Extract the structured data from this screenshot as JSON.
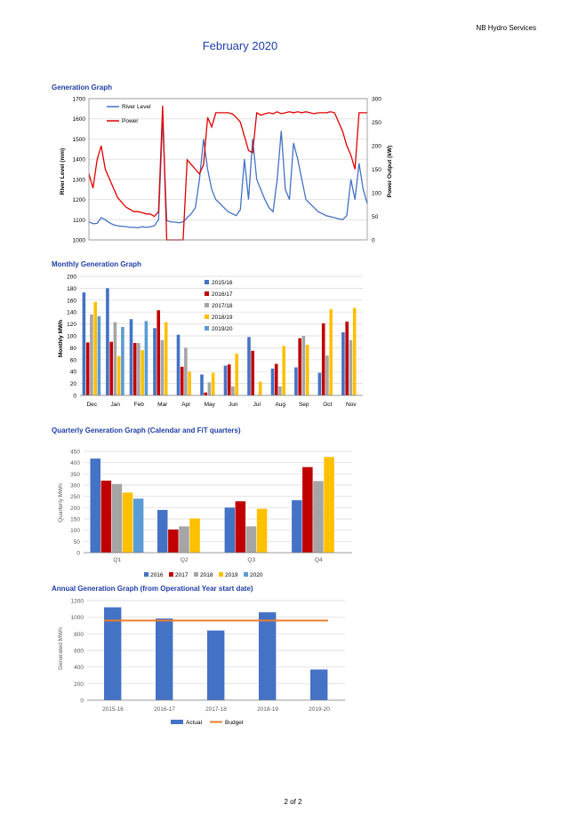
{
  "header": {
    "company": "NB Hydro Services",
    "title": "February 2020"
  },
  "footer": {
    "page": "2 of 2"
  },
  "sections": {
    "generation": "Generation Graph",
    "monthly": "Monthly Generation Graph",
    "quarterly": "Quarterly Generation Graph (Calendar and FiT quarters)",
    "annual": "Annual Generation Graph (from Operational Year start date)"
  },
  "colors": {
    "river": "#4472c4",
    "power": "#e00000",
    "grid": "#bfbfbf",
    "heading": "#1f3ea8"
  },
  "chart_data": [
    {
      "type": "line",
      "xlabel": "",
      "ylabel": "River Level (mm)",
      "y2label": "Power Output (kW)",
      "ylim": [
        1000,
        1700
      ],
      "y2lim": [
        0,
        300
      ],
      "yticks": [
        "1000",
        "1100",
        "1200",
        "1300",
        "1400",
        "1500",
        "1600",
        "1700"
      ],
      "y2ticks": [
        "0",
        "50",
        "100",
        "150",
        "200",
        "250",
        "300"
      ],
      "series": [
        {
          "name": "River Level",
          "axis": "left",
          "values": [
            1090,
            1080,
            1082,
            1110,
            1100,
            1085,
            1075,
            1070,
            1068,
            1066,
            1062,
            1062,
            1060,
            1065,
            1062,
            1065,
            1070,
            1100,
            1600,
            1095,
            1090,
            1088,
            1085,
            1090,
            1110,
            1130,
            1160,
            1300,
            1500,
            1350,
            1250,
            1200,
            1180,
            1160,
            1140,
            1130,
            1120,
            1150,
            1400,
            1200,
            1500,
            1300,
            1250,
            1200,
            1160,
            1140,
            1300,
            1540,
            1250,
            1200,
            1480,
            1400,
            1300,
            1200,
            1180,
            1160,
            1140,
            1130,
            1120,
            1115,
            1110,
            1105,
            1100,
            1120,
            1300,
            1200,
            1380,
            1250,
            1180
          ]
        },
        {
          "name": "Power",
          "axis": "right",
          "values": [
            140,
            110,
            170,
            200,
            150,
            130,
            110,
            90,
            80,
            70,
            65,
            60,
            60,
            58,
            55,
            55,
            50,
            60,
            285,
            0,
            0,
            0,
            0,
            0,
            170,
            160,
            150,
            140,
            160,
            260,
            240,
            270,
            270,
            270,
            270,
            268,
            260,
            250,
            220,
            190,
            185,
            270,
            265,
            268,
            270,
            268,
            272,
            268,
            270,
            272,
            270,
            272,
            270,
            272,
            270,
            268,
            270,
            270,
            270,
            272,
            270,
            250,
            230,
            200,
            180,
            150,
            270,
            270,
            270
          ]
        }
      ]
    },
    {
      "type": "bar",
      "ylabel": "Monthly MWh",
      "ylim": [
        0,
        200
      ],
      "yticks": [
        "0",
        "20",
        "40",
        "60",
        "80",
        "100",
        "120",
        "140",
        "160",
        "180",
        "200"
      ],
      "categories": [
        "Dec",
        "Jan",
        "Feb",
        "Mar",
        "Apr",
        "May",
        "Jun",
        "Jul",
        "Aug",
        "Sep",
        "Oct",
        "Nov"
      ],
      "series": [
        {
          "name": "2015/16",
          "color": "#4472c4",
          "values": [
            173,
            180,
            128,
            113,
            102,
            35,
            50,
            98,
            45,
            47,
            38,
            106
          ]
        },
        {
          "name": "2016/17",
          "color": "#c00000",
          "values": [
            89,
            90,
            88,
            143,
            48,
            5,
            52,
            75,
            53,
            96,
            121,
            124
          ]
        },
        {
          "name": "2017/18",
          "color": "#a5a5a5",
          "values": [
            136,
            123,
            88,
            93,
            80,
            22,
            15,
            0,
            15,
            100,
            67,
            93
          ]
        },
        {
          "name": "2018/19",
          "color": "#ffc000",
          "values": [
            157,
            66,
            76,
            123,
            40,
            38,
            70,
            23,
            83,
            85,
            145,
            147
          ]
        },
        {
          "name": "2019/20",
          "color": "#5b9bd5",
          "values": [
            133,
            115,
            125,
            0,
            0,
            0,
            0,
            0,
            0,
            0,
            0,
            0
          ]
        }
      ]
    },
    {
      "type": "bar",
      "ylabel": "Quarterly MWh",
      "ylim": [
        0,
        450
      ],
      "yticks": [
        "0",
        "50",
        "100",
        "150",
        "200",
        "250",
        "300",
        "350",
        "400",
        "450"
      ],
      "categories": [
        "Q1",
        "Q2",
        "Q3",
        "Q4"
      ],
      "series": [
        {
          "name": "2016",
          "color": "#4472c4",
          "values": [
            418,
            190,
            200,
            233
          ]
        },
        {
          "name": "2017",
          "color": "#c00000",
          "values": [
            320,
            103,
            228,
            380
          ]
        },
        {
          "name": "2018",
          "color": "#a5a5a5",
          "values": [
            305,
            117,
            117,
            318
          ]
        },
        {
          "name": "2019",
          "color": "#ffc000",
          "values": [
            267,
            152,
            195,
            425
          ]
        },
        {
          "name": "2020",
          "color": "#5b9bd5",
          "values": [
            240,
            0,
            0,
            0
          ]
        }
      ]
    },
    {
      "type": "bar",
      "ylabel": "Generated MWh",
      "ylim": [
        0,
        1200
      ],
      "yticks": [
        "0",
        "200",
        "400",
        "600",
        "800",
        "1000",
        "1200"
      ],
      "categories": [
        "2015-16",
        "2016-17",
        "2017-18",
        "2018-19",
        "2019-20"
      ],
      "series": [
        {
          "name": "Actual",
          "color": "#4472c4",
          "values": [
            1120,
            985,
            840,
            1060,
            370
          ]
        },
        {
          "name": "Budget",
          "color": "#ed7d31",
          "values": [
            960,
            960,
            960,
            960,
            960
          ]
        }
      ]
    }
  ]
}
